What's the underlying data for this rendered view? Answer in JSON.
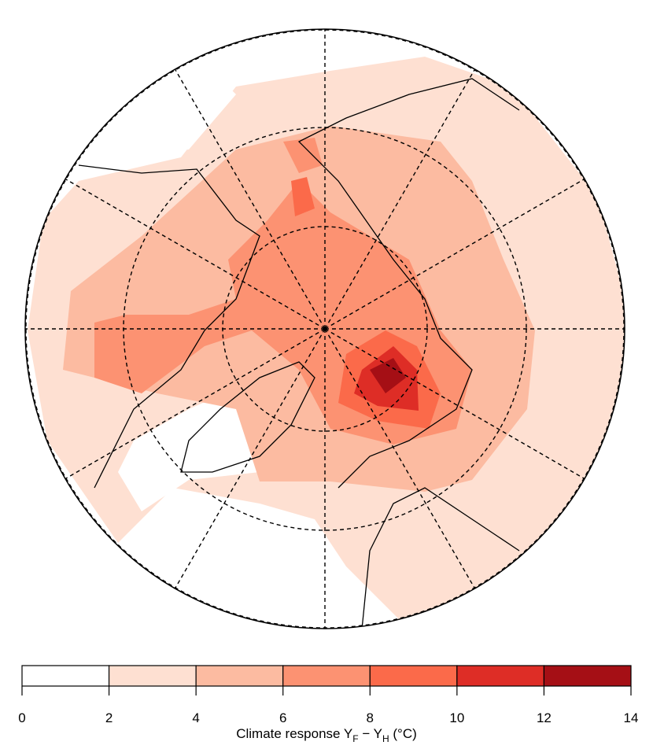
{
  "chart_data": {
    "type": "colorbar-map",
    "levels": [
      0,
      2,
      4,
      6,
      8,
      10,
      12,
      14
    ],
    "colors": [
      "#ffffff",
      "#fee0d2",
      "#fcbba1",
      "#fc9272",
      "#fb6a4a",
      "#de2d26",
      "#a50f15"
    ],
    "label": [
      "Climate response Y",
      "F",
      " − Y",
      "H",
      " (°C)"
    ]
  }
}
